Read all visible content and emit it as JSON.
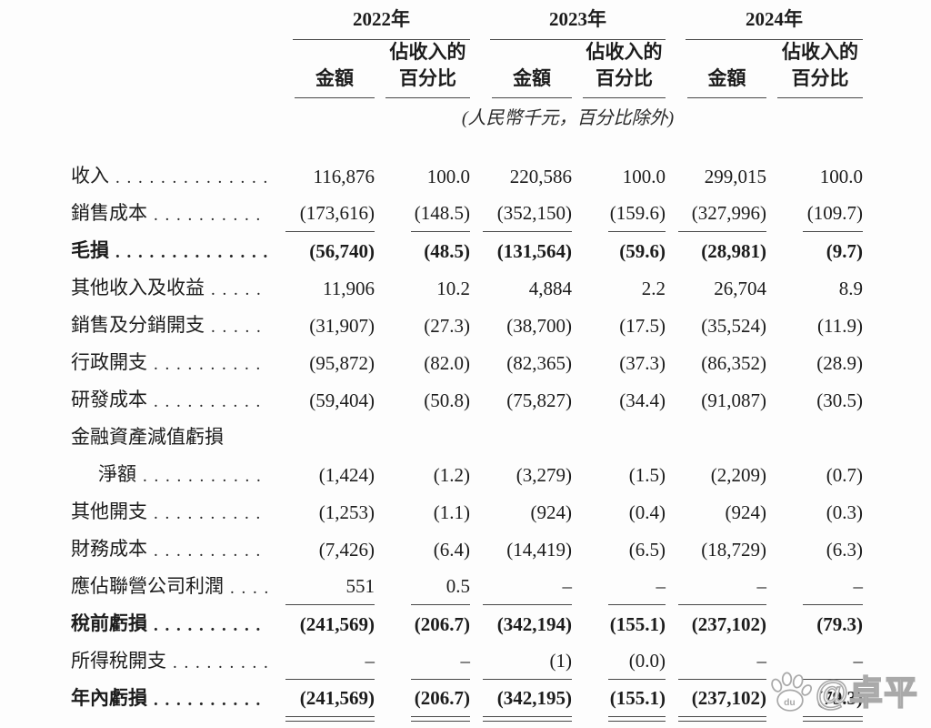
{
  "header": {
    "years": [
      {
        "label": "2022年"
      },
      {
        "label": "2023年"
      },
      {
        "label": "2024年"
      }
    ],
    "amount_label": "金額",
    "pct_label_line1": "佔收入的",
    "pct_label_line2": "百分比",
    "note": "(人民幣千元，百分比除外)"
  },
  "rows": [
    {
      "label": "收入",
      "bold": false,
      "indent": false,
      "leader": true,
      "underline": "none",
      "values": [
        "116,876",
        "100.0",
        "220,586",
        "100.0",
        "299,015",
        "100.0"
      ]
    },
    {
      "label": "銷售成本",
      "bold": false,
      "indent": false,
      "leader": true,
      "underline": "single",
      "values": [
        "(173,616)",
        "(148.5)",
        "(352,150)",
        "(159.6)",
        "(327,996)",
        "(109.7)"
      ]
    },
    {
      "label": "毛損",
      "bold": true,
      "indent": false,
      "leader": true,
      "underline": "none",
      "values": [
        "(56,740)",
        "(48.5)",
        "(131,564)",
        "(59.6)",
        "(28,981)",
        "(9.7)"
      ]
    },
    {
      "label": "其他收入及收益",
      "bold": false,
      "indent": false,
      "leader": true,
      "underline": "none",
      "values": [
        "11,906",
        "10.2",
        "4,884",
        "2.2",
        "26,704",
        "8.9"
      ]
    },
    {
      "label": "銷售及分銷開支",
      "bold": false,
      "indent": false,
      "leader": true,
      "underline": "none",
      "values": [
        "(31,907)",
        "(27.3)",
        "(38,700)",
        "(17.5)",
        "(35,524)",
        "(11.9)"
      ]
    },
    {
      "label": "行政開支",
      "bold": false,
      "indent": false,
      "leader": true,
      "underline": "none",
      "values": [
        "(95,872)",
        "(82.0)",
        "(82,365)",
        "(37.3)",
        "(86,352)",
        "(28.9)"
      ]
    },
    {
      "label": "研發成本",
      "bold": false,
      "indent": false,
      "leader": true,
      "underline": "none",
      "values": [
        "(59,404)",
        "(50.8)",
        "(75,827)",
        "(34.4)",
        "(91,087)",
        "(30.5)"
      ]
    },
    {
      "label": "金融資產減值虧損",
      "bold": false,
      "indent": false,
      "leader": false,
      "underline": "none",
      "values": [
        "",
        "",
        "",
        "",
        "",
        ""
      ]
    },
    {
      "label": "淨額",
      "bold": false,
      "indent": true,
      "leader": true,
      "underline": "none",
      "values": [
        "(1,424)",
        "(1.2)",
        "(3,279)",
        "(1.5)",
        "(2,209)",
        "(0.7)"
      ]
    },
    {
      "label": "其他開支",
      "bold": false,
      "indent": false,
      "leader": true,
      "underline": "none",
      "values": [
        "(1,253)",
        "(1.1)",
        "(924)",
        "(0.4)",
        "(924)",
        "(0.3)"
      ]
    },
    {
      "label": "財務成本",
      "bold": false,
      "indent": false,
      "leader": true,
      "underline": "none",
      "values": [
        "(7,426)",
        "(6.4)",
        "(14,419)",
        "(6.5)",
        "(18,729)",
        "(6.3)"
      ]
    },
    {
      "label": "應佔聯營公司利潤",
      "bold": false,
      "indent": false,
      "leader": true,
      "underline": "single",
      "values": [
        "551",
        "0.5",
        "–",
        "–",
        "–",
        "–"
      ]
    },
    {
      "label": "稅前虧損",
      "bold": true,
      "indent": false,
      "leader": true,
      "underline": "none",
      "values": [
        "(241,569)",
        "(206.7)",
        "(342,194)",
        "(155.1)",
        "(237,102)",
        "(79.3)"
      ]
    },
    {
      "label": "所得稅開支",
      "bold": false,
      "indent": false,
      "leader": true,
      "underline": "single",
      "values": [
        "–",
        "–",
        "(1)",
        "(0.0)",
        "–",
        "–"
      ]
    },
    {
      "label": "年內虧損",
      "bold": true,
      "indent": false,
      "leader": true,
      "underline": "double",
      "values": [
        "(241,569)",
        "(206.7)",
        "(342,195)",
        "(155.1)",
        "(237,102)",
        "(79.3)"
      ]
    }
  ],
  "watermark": {
    "text": "@卓平",
    "logo": "baidu-paw",
    "logo_text": "du"
  }
}
